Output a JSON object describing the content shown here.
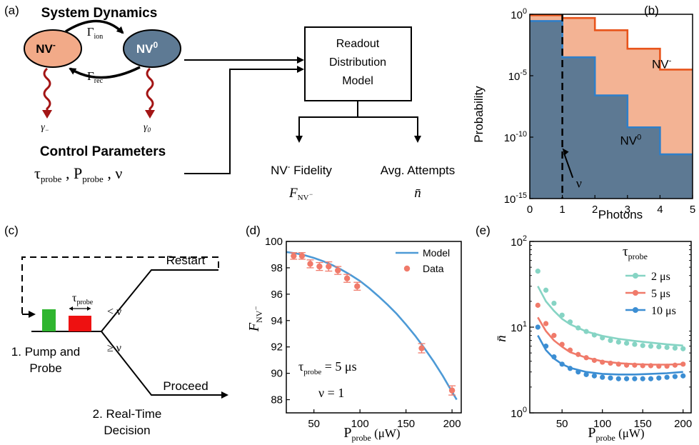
{
  "panel_labels": {
    "a": "(a)",
    "b": "(b)",
    "c": "(c)",
    "d": "(d)",
    "e": "(e)"
  },
  "panel_a": {
    "system_dynamics": "System Dynamics",
    "nv_minus": "NV",
    "nv_minus_sup": "-",
    "nv_zero": "NV",
    "nv_zero_sup": "0",
    "gamma_ion": "Γ",
    "gamma_ion_sub": "ion",
    "gamma_rec": "Γ",
    "gamma_rec_sub": "rec",
    "gamma_minus": "γ",
    "gamma_minus_sub": "−",
    "gamma_zero": "γ",
    "gamma_zero_sub": "0",
    "control_parameters": "Control Parameters",
    "tau": "τ",
    "tau_sub": "probe",
    "sep1": " , ",
    "p": "P",
    "p_sub": "probe",
    "sep2": " , ν",
    "model_line1": "Readout",
    "model_line2": "Distribution",
    "model_line3": "Model",
    "fidelity_label": "NV",
    "fidelity_label_sup": "-",
    "fidelity_label_rest": " Fidelity",
    "fidelity_symbol": "F",
    "fidelity_symbol_sub": "NV",
    "fidelity_symbol_subsup": "−",
    "attempts_label": "Avg. Attempts",
    "attempts_symbol": "n̄"
  },
  "panel_c": {
    "tau": "τ",
    "tau_sub": "probe",
    "lt": "< ν",
    "ge": "≥ ν",
    "restart": "Restart",
    "proceed": "Proceed",
    "step1_line1": "1. Pump and",
    "step1_line2": "Probe",
    "step2_line1": "2. Real-Time",
    "step2_line2": "Decision",
    "colors": {
      "pump": "#2fb52f",
      "probe": "#ee1111"
    }
  },
  "chart_data": [
    {
      "id": "b",
      "type": "area",
      "step": true,
      "xlabel": "Photons",
      "ylabel": "Probability",
      "xlim": [
        0,
        5
      ],
      "ylim_exp": [
        -15,
        0
      ],
      "yscale": "log",
      "xticks": [
        "0",
        "1",
        "2",
        "3",
        "4",
        "5"
      ],
      "yticks": [
        {
          "base": "10",
          "exp": "0",
          "value": 0
        },
        {
          "base": "10",
          "exp": "-5",
          "value": -5
        },
        {
          "base": "10",
          "exp": "-10",
          "value": -10
        },
        {
          "base": "10",
          "exp": "-15",
          "value": -15
        }
      ],
      "series": [
        {
          "name": "NV",
          "name_sup": "-",
          "color": "#e8541b",
          "fill": "#f3b394",
          "log10_values": [
            -0.08,
            -0.3,
            -1.3,
            -2.8,
            -4.5,
            -6.1
          ]
        },
        {
          "name": "NV",
          "name_sup": "0",
          "color": "#2f7fc8",
          "fill": "#5d7993",
          "log10_values": [
            -0.55,
            -3.5,
            -6.6,
            -9.2,
            -11.4,
            -13.2
          ]
        }
      ],
      "threshold": {
        "x": 1,
        "label": "ν"
      }
    },
    {
      "id": "d",
      "type": "line",
      "xlabel": "P",
      "xlabel_sub": "probe",
      "xlabel_unit": " (μW)",
      "ylabel": "F",
      "ylabel_sub": "NV",
      "ylabel_subsup": "−",
      "xlim": [
        20,
        210
      ],
      "ylim": [
        87,
        100
      ],
      "xticks": [
        50,
        100,
        150,
        200
      ],
      "yticks": [
        88,
        90,
        92,
        94,
        96,
        98,
        100
      ],
      "legend": {
        "model": "Model",
        "data": "Data"
      },
      "annotation_tau": "τ",
      "annotation_tau_sub": "probe",
      "annotation_tau_val": " =  5 μs",
      "annotation_nu": "ν  =  1",
      "model": {
        "color": "#4d9ad6",
        "x": [
          20,
          30,
          40,
          50,
          60,
          70,
          80,
          90,
          100,
          110,
          120,
          130,
          140,
          150,
          160,
          170,
          180,
          190,
          200,
          205
        ],
        "y": [
          99.2,
          99.1,
          98.95,
          98.75,
          98.5,
          98.2,
          97.85,
          97.45,
          97.0,
          96.45,
          95.85,
          95.2,
          94.5,
          93.7,
          92.85,
          91.9,
          90.9,
          89.8,
          88.6,
          88.0
        ]
      },
      "data": {
        "color": "#f07a6a",
        "x": [
          28,
          37,
          46,
          56,
          66,
          76,
          86,
          97,
          167,
          200
        ],
        "y": [
          98.9,
          98.9,
          98.3,
          98.1,
          98.1,
          97.8,
          97.2,
          96.6,
          91.9,
          88.7
        ],
        "err": [
          0.25,
          0.25,
          0.3,
          0.3,
          0.35,
          0.3,
          0.3,
          0.3,
          0.35,
          0.35
        ]
      }
    },
    {
      "id": "e",
      "type": "scatter",
      "yscale": "log",
      "xlabel": "P",
      "xlabel_sub": "probe",
      "xlabel_unit": " (μW)",
      "ylabel": "n̄",
      "xlim": [
        10,
        210
      ],
      "ylim_exp": [
        0,
        2
      ],
      "xticks": [
        50,
        100,
        150,
        200
      ],
      "yticks": [
        {
          "base": "10",
          "exp": "0",
          "value": 0
        },
        {
          "base": "10",
          "exp": "1",
          "value": 1
        },
        {
          "base": "10",
          "exp": "2",
          "value": 2
        }
      ],
      "legend_title": "τ",
      "legend_title_sub": "probe",
      "series": [
        {
          "name": "2 μs",
          "color": "#86d4c4",
          "x": [
            20,
            30,
            40,
            50,
            60,
            70,
            80,
            90,
            100,
            110,
            120,
            130,
            140,
            150,
            160,
            170,
            180,
            190,
            200
          ],
          "y": [
            45,
            27,
            19,
            13.8,
            11.5,
            9.8,
            8.9,
            8.1,
            7.5,
            7.0,
            6.7,
            6.5,
            6.3,
            6.1,
            6.0,
            5.9,
            5.8,
            5.7,
            5.6
          ],
          "model_x": [
            20,
            30,
            40,
            50,
            60,
            80,
            100,
            120,
            140,
            160,
            180,
            200
          ],
          "model_y": [
            30,
            20,
            15.5,
            12.5,
            10.8,
            8.9,
            7.9,
            7.3,
            6.9,
            6.6,
            6.3,
            6.1
          ]
        },
        {
          "name": "5 μs",
          "color": "#f07a6a",
          "x": [
            20,
            30,
            40,
            50,
            60,
            70,
            80,
            90,
            100,
            110,
            120,
            130,
            140,
            150,
            160,
            170,
            180,
            190,
            200
          ],
          "y": [
            18,
            11,
            8.0,
            6.3,
            5.4,
            4.8,
            4.4,
            4.1,
            3.9,
            3.8,
            3.7,
            3.6,
            3.6,
            3.55,
            3.55,
            3.5,
            3.5,
            3.6,
            3.7
          ],
          "model_x": [
            20,
            30,
            40,
            50,
            60,
            80,
            100,
            120,
            140,
            160,
            180,
            200
          ],
          "model_y": [
            13,
            9.0,
            7.0,
            5.9,
            5.1,
            4.4,
            4.0,
            3.8,
            3.7,
            3.65,
            3.65,
            3.7
          ]
        },
        {
          "name": "10 μs",
          "color": "#3c8ed3",
          "x": [
            20,
            30,
            40,
            50,
            60,
            70,
            80,
            90,
            100,
            110,
            120,
            130,
            140,
            150,
            160,
            170,
            180,
            190,
            200
          ],
          "y": [
            10,
            6.0,
            4.5,
            3.7,
            3.3,
            3.0,
            2.8,
            2.7,
            2.6,
            2.55,
            2.5,
            2.5,
            2.5,
            2.5,
            2.5,
            2.55,
            2.6,
            2.65,
            2.7
          ],
          "model_x": [
            20,
            30,
            40,
            50,
            60,
            80,
            100,
            120,
            140,
            160,
            180,
            200
          ],
          "model_y": [
            8.0,
            5.4,
            4.3,
            3.7,
            3.35,
            3.0,
            2.85,
            2.8,
            2.8,
            2.85,
            2.9,
            3.0
          ]
        }
      ]
    }
  ]
}
